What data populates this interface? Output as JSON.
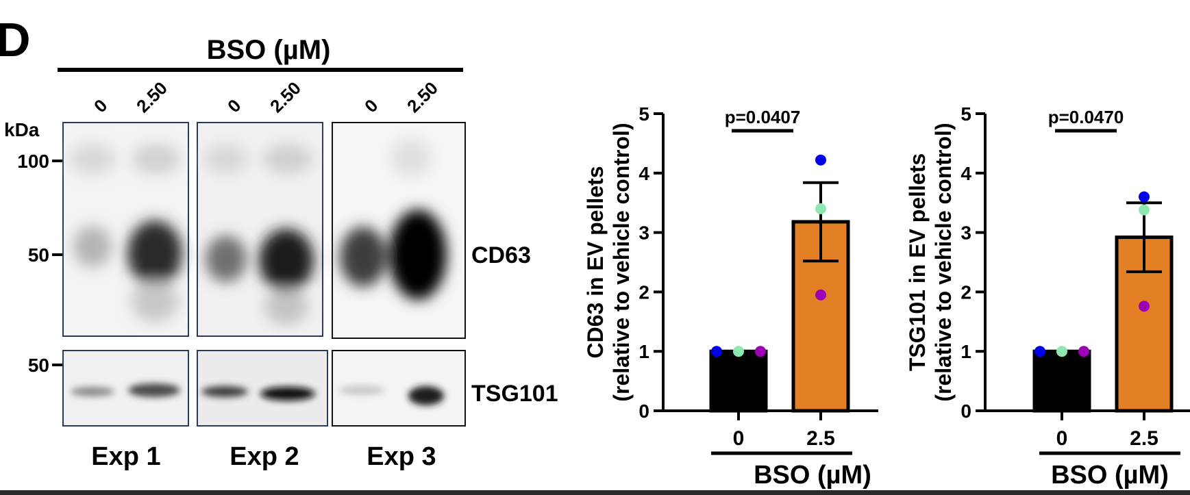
{
  "figure": {
    "panel_letter": "D",
    "blot": {
      "treatment_label": "BSO (µM)",
      "kda_label": "kDa",
      "markers_top": [
        "100",
        "50"
      ],
      "marker_bottom": "50",
      "lanes": [
        {
          "exp": "Exp 1",
          "doses": [
            "0",
            "2.50"
          ]
        },
        {
          "exp": "Exp 2",
          "doses": [
            "0",
            "2.50"
          ]
        },
        {
          "exp": "Exp 3",
          "doses": [
            "0",
            "2.50"
          ]
        }
      ],
      "band_labels": {
        "top": "CD63",
        "bottom": "TSG101"
      }
    }
  },
  "chart_data": [
    {
      "type": "bar",
      "categories": [
        "0",
        "2.5"
      ],
      "values": [
        1.0,
        3.18
      ],
      "sem": [
        0,
        0.66
      ],
      "points": [
        [
          1,
          1,
          1
        ],
        [
          4.22,
          3.4,
          1.95
        ]
      ],
      "point_colors": [
        "#0000e6",
        "#8ee6b0",
        "#9b00b5"
      ],
      "bar_colors": [
        "#000000",
        "#e38025"
      ],
      "ylabel": "CD63 in EV pellets",
      "ylabel2": "(relative to vehicle control)",
      "xlabel": "BSO (µM)",
      "ylim": [
        0,
        5
      ],
      "yticks": [
        "0",
        "1",
        "2",
        "3",
        "4",
        "5"
      ],
      "annotation": "p=0.0407"
    },
    {
      "type": "bar",
      "categories": [
        "0",
        "2.5"
      ],
      "values": [
        1.0,
        2.92
      ],
      "sem": [
        0,
        0.58
      ],
      "points": [
        [
          1,
          1,
          1
        ],
        [
          3.6,
          3.38,
          1.76
        ]
      ],
      "point_colors": [
        "#0000e6",
        "#8ee6b0",
        "#9b00b5"
      ],
      "bar_colors": [
        "#000000",
        "#e38025"
      ],
      "ylabel": "TSG101 in EV pellets",
      "ylabel2": "(relative to vehicle control)",
      "xlabel": "BSO (µM)",
      "ylim": [
        0,
        5
      ],
      "yticks": [
        "0",
        "1",
        "2",
        "3",
        "4",
        "5"
      ],
      "annotation": "p=0.0470"
    }
  ]
}
